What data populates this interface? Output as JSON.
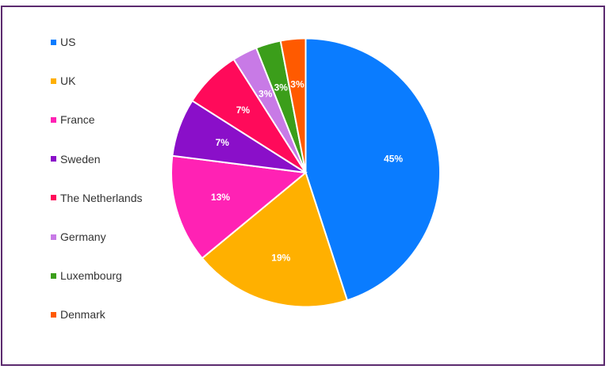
{
  "chart_data": {
    "type": "pie",
    "title": "",
    "legend_position": "left",
    "start_angle_deg": -90,
    "direction": "clockwise",
    "slices": [
      {
        "label": "US",
        "value": 45,
        "display": "45%",
        "color": "#0a7cff"
      },
      {
        "label": "UK",
        "value": 19,
        "display": "19%",
        "color": "#ffb000"
      },
      {
        "label": "France",
        "value": 13,
        "display": "13%",
        "color": "#ff22b4"
      },
      {
        "label": "Sweden",
        "value": 7,
        "display": "7%",
        "color": "#8a0fc9"
      },
      {
        "label": "The Netherlands",
        "value": 7,
        "display": "7%",
        "color": "#ff0a5a"
      },
      {
        "label": "Germany",
        "value": 3,
        "display": "3%",
        "color": "#c87ae6"
      },
      {
        "label": "Luxembourg",
        "value": 3,
        "display": "3%",
        "color": "#3b9e1a"
      },
      {
        "label": "Denmark",
        "value": 3,
        "display": "3%",
        "color": "#ff5a00"
      }
    ]
  },
  "frame_border_color": "#5b2a6e"
}
